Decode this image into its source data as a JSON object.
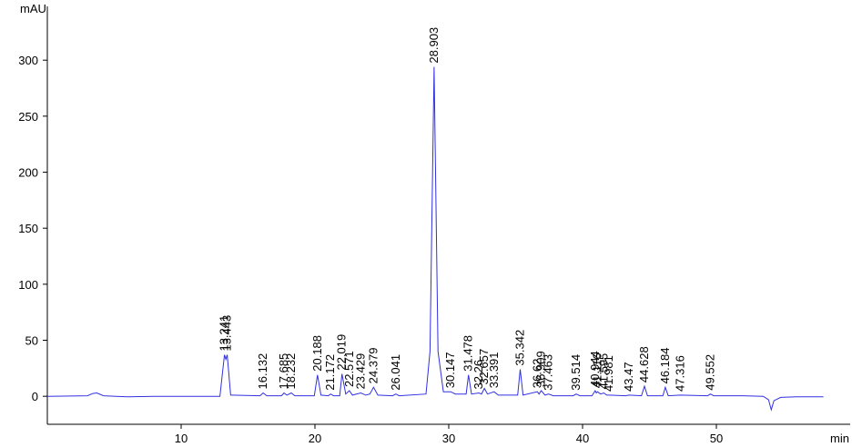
{
  "chart_data": {
    "type": "line",
    "y_label": "mAU",
    "x_label": "min",
    "color": "#3030e0",
    "xlim": [
      0,
      60
    ],
    "ylim": [
      -25,
      348
    ],
    "xticks": [
      10,
      20,
      30,
      40,
      50
    ],
    "yticks": [
      0,
      50,
      100,
      150,
      200,
      250,
      300
    ],
    "x": [
      0,
      3,
      3.4,
      3.7,
      4.2,
      6,
      8,
      12.9,
      13.241,
      13.34,
      13.443,
      13.7,
      15.9,
      16.132,
      16.4,
      17.5,
      17.685,
      17.9,
      18.232,
      18.5,
      19.95,
      20.188,
      20.45,
      21.0,
      21.172,
      21.4,
      21.85,
      22.019,
      22.3,
      22.571,
      22.8,
      23.429,
      23.8,
      24.1,
      24.379,
      24.7,
      25.8,
      26.041,
      26.3,
      28.3,
      28.6,
      28.903,
      29.2,
      29.6,
      30.147,
      30.5,
      31.3,
      31.478,
      31.7,
      32.26,
      32.45,
      32.657,
      32.9,
      33.391,
      33.7,
      35.15,
      35.342,
      35.55,
      36.62,
      36.75,
      36.909,
      37.2,
      37.463,
      37.8,
      39.3,
      39.514,
      39.8,
      40.7,
      40.944,
      41.03,
      41.116,
      41.35,
      41.595,
      41.8,
      41.981,
      43.2,
      43.47,
      44.4,
      44.628,
      44.85,
      46.0,
      46.184,
      46.4,
      47.316,
      49.35,
      49.552,
      49.8,
      52,
      53.5,
      53.9,
      54.1,
      54.3,
      54.8,
      56,
      58
    ],
    "values": [
      0,
      0.5,
      2.5,
      3,
      0.5,
      -0.5,
      0,
      0,
      37,
      33,
      37,
      1,
      0.5,
      3,
      0.5,
      0.5,
      3,
      1,
      3,
      0.5,
      0.5,
      19,
      1,
      0.5,
      2,
      0.5,
      0.5,
      20,
      2,
      5,
      1,
      3,
      1,
      2,
      8,
      1,
      0.5,
      2,
      0.5,
      2,
      40,
      294,
      40,
      4,
      4,
      2,
      2,
      19,
      2,
      3,
      2,
      7,
      2,
      4,
      1,
      1,
      24,
      1,
      4,
      2,
      5,
      1,
      2,
      0.5,
      0.5,
      2,
      0.5,
      0.5,
      5,
      3,
      4,
      2,
      3,
      1,
      1,
      0.5,
      1,
      0.5,
      9,
      0.5,
      0.5,
      8,
      0.5,
      1,
      0.5,
      2,
      0.5,
      0.5,
      0,
      -3,
      -12,
      -4,
      -1,
      -0.5,
      -0.5
    ],
    "peaks": [
      13.241,
      13.443,
      16.132,
      17.685,
      18.232,
      20.188,
      21.172,
      22.019,
      22.571,
      23.429,
      24.379,
      26.041,
      28.903,
      30.147,
      31.478,
      32.26,
      32.657,
      33.391,
      35.342,
      36.62,
      36.909,
      37.463,
      39.514,
      40.944,
      41.116,
      41.595,
      41.981,
      43.47,
      44.628,
      46.184,
      47.316,
      49.552
    ]
  }
}
